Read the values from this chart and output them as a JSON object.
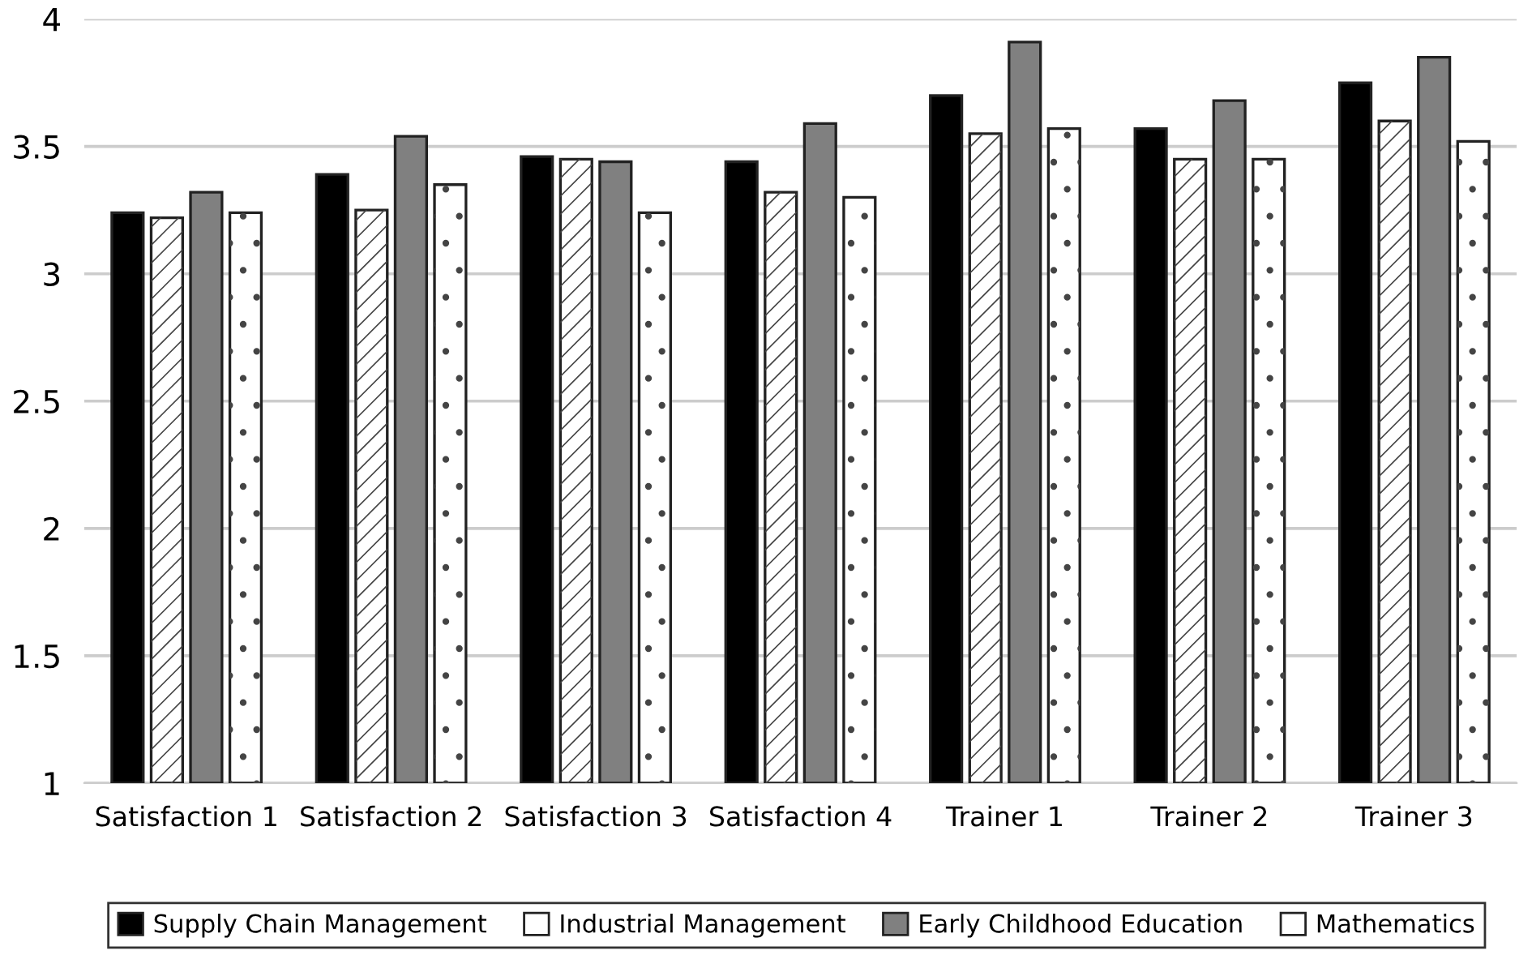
{
  "chart_data": {
    "type": "bar",
    "categories": [
      "Satisfaction 1",
      "Satisfaction 2",
      "Satisfaction 3",
      "Satisfaction 4",
      "Trainer 1",
      "Trainer 2",
      "Trainer 3"
    ],
    "series": [
      {
        "name": "Supply Chain Management",
        "color": "#000000",
        "values": [
          3.24,
          3.39,
          3.46,
          3.44,
          3.7,
          3.57,
          3.75
        ]
      },
      {
        "name": "Industrial Management",
        "color": "#ffffff",
        "values": [
          3.22,
          3.25,
          3.45,
          3.32,
          3.55,
          3.45,
          3.6
        ]
      },
      {
        "name": "Early Childhood Education",
        "color": "#808080",
        "values": [
          3.32,
          3.54,
          3.44,
          3.59,
          3.91,
          3.68,
          3.85
        ]
      },
      {
        "name": "Mathematics",
        "color": "#ffffff",
        "values": [
          3.24,
          3.35,
          3.24,
          3.3,
          3.57,
          3.45,
          3.52
        ]
      }
    ],
    "ylim": [
      1,
      4
    ],
    "yticks": [
      1,
      1.5,
      2,
      2.5,
      3,
      3.5,
      4
    ],
    "grid": "y",
    "legend": "bottom"
  }
}
